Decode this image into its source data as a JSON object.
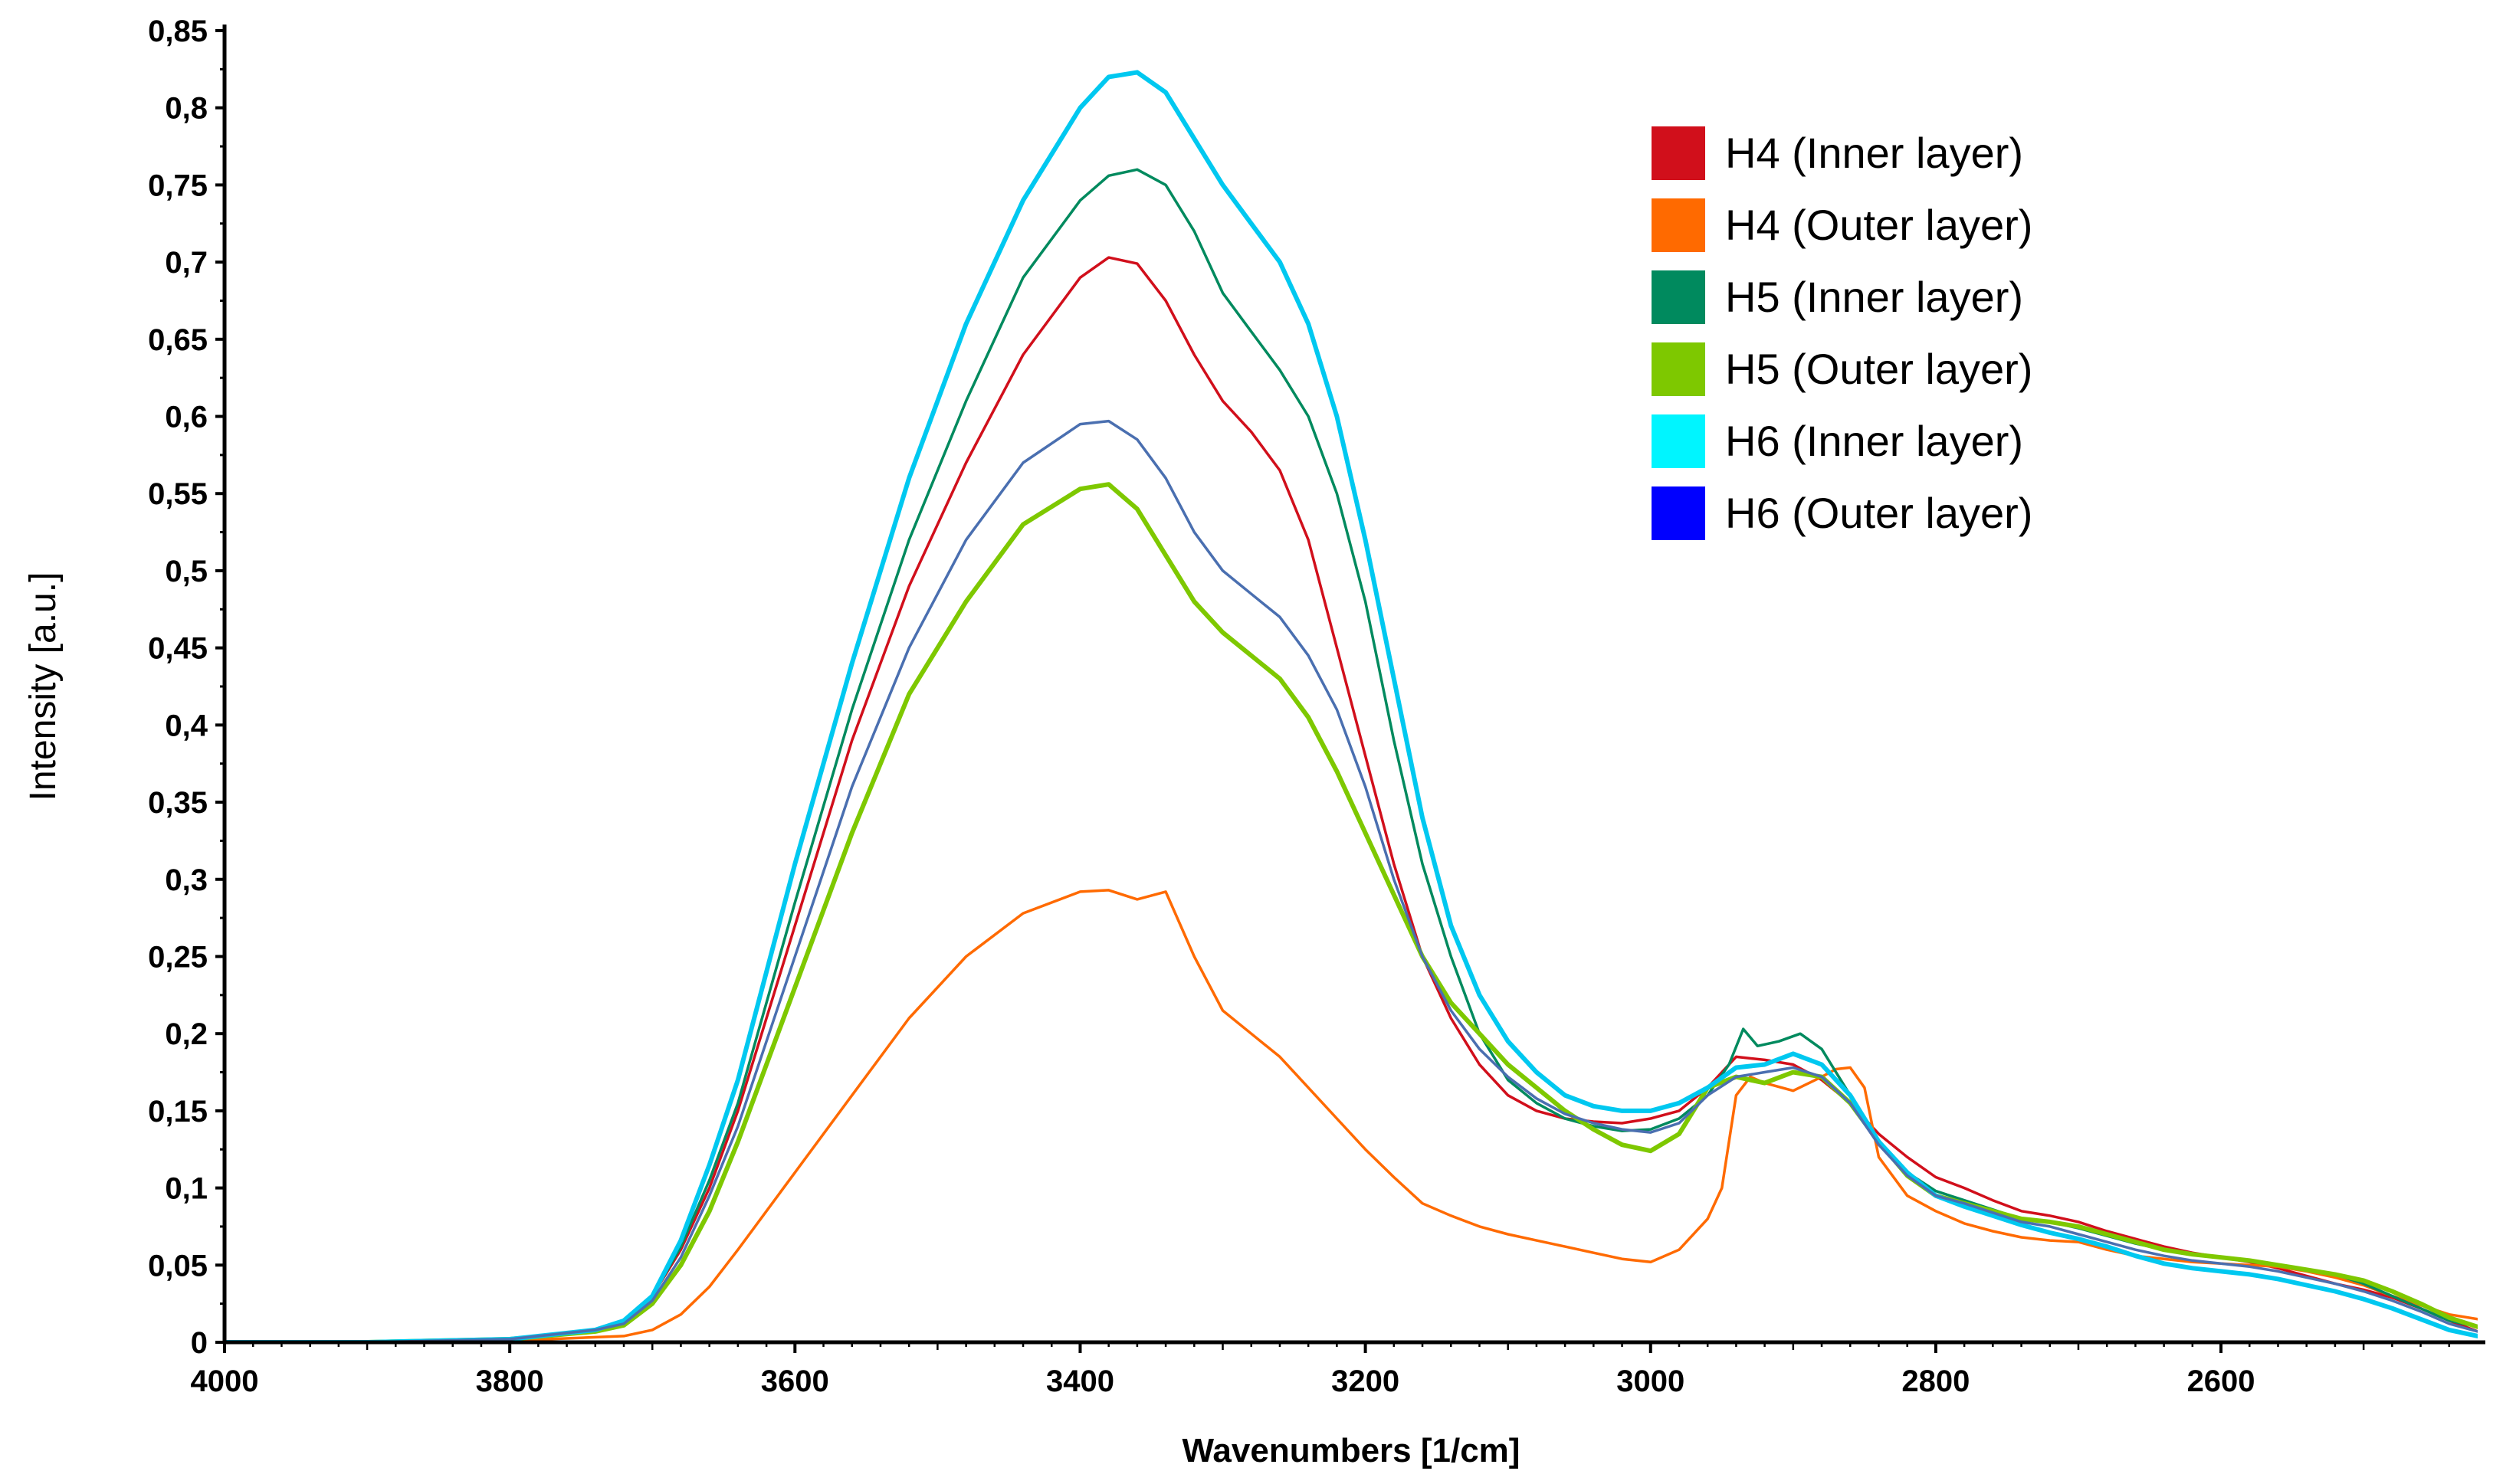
{
  "chart_data": {
    "type": "line",
    "title": "",
    "xlabel": "Wavenumbers [1/cm]",
    "ylabel": "Intensity [a.u.]",
    "xlim": [
      4000,
      2420
    ],
    "ylim": [
      0,
      0.85
    ],
    "x_ticks": [
      4000,
      3800,
      3600,
      3400,
      3200,
      3000,
      2800,
      2600
    ],
    "x_tick_labels": [
      "4000",
      "3800",
      "3600",
      "3400",
      "3200",
      "3000",
      "2800",
      "2600"
    ],
    "y_ticks": [
      0,
      0.05,
      0.1,
      0.15,
      0.2,
      0.25,
      0.3,
      0.35,
      0.4,
      0.45,
      0.5,
      0.55,
      0.6,
      0.65,
      0.7,
      0.75,
      0.8,
      0.85
    ],
    "y_tick_labels": [
      "0",
      "0,05",
      "0,1",
      "0,15",
      "0,2",
      "0,25",
      "0,3",
      "0,35",
      "0,4",
      "0,45",
      "0,5",
      "0,55",
      "0,6",
      "0,65",
      "0,7",
      "0,75",
      "0,8",
      "0,85"
    ],
    "legend_position": "top-right",
    "legend": [
      {
        "label": "H4 (Inner layer)",
        "color": "#d10f1b"
      },
      {
        "label": "H4 (Outer layer)",
        "color": "#ff6a00"
      },
      {
        "label": "H5 (Inner layer)",
        "color": "#008a5e"
      },
      {
        "label": "H5 (Outer layer)",
        "color": "#7ec800"
      },
      {
        "label": "H6 (Inner layer)",
        "color": "#00f5ff"
      },
      {
        "label": "H6 (Outer layer)",
        "color": "#0000ff"
      }
    ],
    "series": [
      {
        "name": "H4 (Inner layer)",
        "color": "#d10f1b",
        "width": 3.5,
        "x": [
          4000,
          3900,
          3800,
          3740,
          3720,
          3700,
          3680,
          3660,
          3640,
          3600,
          3560,
          3520,
          3480,
          3440,
          3400,
          3380,
          3360,
          3340,
          3320,
          3300,
          3280,
          3260,
          3240,
          3220,
          3200,
          3180,
          3160,
          3140,
          3120,
          3100,
          3080,
          3060,
          3040,
          3020,
          3000,
          2980,
          2960,
          2940,
          2920,
          2900,
          2880,
          2860,
          2840,
          2820,
          2800,
          2780,
          2760,
          2740,
          2720,
          2700,
          2680,
          2660,
          2640,
          2620,
          2600,
          2580,
          2560,
          2540,
          2520,
          2500,
          2480,
          2460,
          2440,
          2420
        ],
        "y": [
          0,
          0,
          0.002,
          0.008,
          0.013,
          0.03,
          0.06,
          0.1,
          0.15,
          0.27,
          0.39,
          0.49,
          0.57,
          0.64,
          0.69,
          0.703,
          0.699,
          0.675,
          0.64,
          0.61,
          0.59,
          0.565,
          0.52,
          0.45,
          0.38,
          0.31,
          0.25,
          0.21,
          0.18,
          0.16,
          0.15,
          0.145,
          0.143,
          0.142,
          0.145,
          0.15,
          0.165,
          0.185,
          0.183,
          0.18,
          0.17,
          0.155,
          0.135,
          0.12,
          0.107,
          0.1,
          0.092,
          0.085,
          0.082,
          0.078,
          0.072,
          0.067,
          0.062,
          0.058,
          0.055,
          0.052,
          0.048,
          0.043,
          0.038,
          0.034,
          0.029,
          0.022,
          0.014,
          0.007
        ]
      },
      {
        "name": "H4 (Outer layer)",
        "color": "#ff6a00",
        "width": 3.5,
        "x": [
          4000,
          3900,
          3800,
          3720,
          3700,
          3680,
          3660,
          3640,
          3600,
          3560,
          3520,
          3480,
          3440,
          3400,
          3380,
          3360,
          3340,
          3320,
          3300,
          3280,
          3260,
          3240,
          3220,
          3200,
          3180,
          3160,
          3140,
          3120,
          3100,
          3080,
          3060,
          3040,
          3020,
          3000,
          2980,
          2960,
          2950,
          2940,
          2930,
          2920,
          2900,
          2880,
          2870,
          2860,
          2850,
          2840,
          2820,
          2800,
          2780,
          2760,
          2740,
          2720,
          2700,
          2680,
          2660,
          2640,
          2620,
          2600,
          2580,
          2560,
          2540,
          2520,
          2500,
          2480,
          2460,
          2440,
          2420
        ],
        "y": [
          0,
          0,
          0.001,
          0.004,
          0.008,
          0.018,
          0.036,
          0.06,
          0.11,
          0.16,
          0.21,
          0.25,
          0.278,
          0.292,
          0.293,
          0.287,
          0.292,
          0.25,
          0.215,
          0.2,
          0.185,
          0.165,
          0.145,
          0.125,
          0.107,
          0.09,
          0.082,
          0.075,
          0.07,
          0.066,
          0.062,
          0.058,
          0.054,
          0.052,
          0.06,
          0.08,
          0.1,
          0.16,
          0.172,
          0.168,
          0.163,
          0.172,
          0.177,
          0.178,
          0.165,
          0.12,
          0.095,
          0.085,
          0.077,
          0.072,
          0.068,
          0.066,
          0.065,
          0.06,
          0.056,
          0.054,
          0.052,
          0.051,
          0.05,
          0.049,
          0.046,
          0.042,
          0.037,
          0.03,
          0.024,
          0.018,
          0.015
        ]
      },
      {
        "name": "H5 (Inner layer)",
        "color": "#008a5e",
        "width": 3.5,
        "x": [
          4000,
          3900,
          3800,
          3740,
          3720,
          3700,
          3680,
          3660,
          3640,
          3600,
          3560,
          3520,
          3480,
          3440,
          3400,
          3380,
          3360,
          3340,
          3320,
          3300,
          3280,
          3260,
          3240,
          3220,
          3200,
          3180,
          3160,
          3140,
          3120,
          3100,
          3080,
          3060,
          3040,
          3020,
          3000,
          2980,
          2960,
          2945,
          2935,
          2925,
          2910,
          2895,
          2880,
          2860,
          2840,
          2820,
          2800,
          2780,
          2760,
          2740,
          2720,
          2700,
          2680,
          2660,
          2640,
          2620,
          2600,
          2580,
          2560,
          2540,
          2520,
          2500,
          2480,
          2460,
          2440,
          2420
        ],
        "y": [
          0,
          0,
          0.002,
          0.008,
          0.014,
          0.03,
          0.062,
          0.105,
          0.155,
          0.285,
          0.41,
          0.52,
          0.61,
          0.69,
          0.74,
          0.756,
          0.76,
          0.75,
          0.72,
          0.68,
          0.655,
          0.63,
          0.6,
          0.55,
          0.48,
          0.39,
          0.31,
          0.25,
          0.2,
          0.17,
          0.155,
          0.145,
          0.14,
          0.137,
          0.138,
          0.145,
          0.16,
          0.18,
          0.203,
          0.192,
          0.195,
          0.2,
          0.19,
          0.16,
          0.13,
          0.11,
          0.098,
          0.092,
          0.086,
          0.08,
          0.078,
          0.074,
          0.069,
          0.064,
          0.06,
          0.057,
          0.055,
          0.053,
          0.05,
          0.047,
          0.044,
          0.038,
          0.03,
          0.022,
          0.014,
          0.01
        ]
      },
      {
        "name": "H5 (Outer layer)",
        "color": "#7ec800",
        "width": 6,
        "x": [
          4000,
          3900,
          3800,
          3740,
          3720,
          3700,
          3680,
          3660,
          3640,
          3600,
          3560,
          3520,
          3480,
          3440,
          3400,
          3380,
          3360,
          3340,
          3320,
          3300,
          3280,
          3260,
          3240,
          3220,
          3200,
          3180,
          3160,
          3140,
          3120,
          3100,
          3080,
          3060,
          3040,
          3020,
          3000,
          2980,
          2960,
          2940,
          2920,
          2900,
          2880,
          2860,
          2840,
          2820,
          2800,
          2780,
          2760,
          2740,
          2720,
          2700,
          2680,
          2660,
          2640,
          2620,
          2600,
          2580,
          2560,
          2540,
          2520,
          2500,
          2480,
          2460,
          2440,
          2420
        ],
        "y": [
          0,
          0,
          0.002,
          0.007,
          0.011,
          0.025,
          0.05,
          0.085,
          0.13,
          0.23,
          0.33,
          0.42,
          0.48,
          0.53,
          0.553,
          0.556,
          0.54,
          0.51,
          0.48,
          0.46,
          0.445,
          0.43,
          0.405,
          0.37,
          0.33,
          0.29,
          0.25,
          0.22,
          0.2,
          0.18,
          0.165,
          0.15,
          0.138,
          0.128,
          0.124,
          0.135,
          0.165,
          0.172,
          0.168,
          0.175,
          0.172,
          0.155,
          0.13,
          0.108,
          0.095,
          0.09,
          0.085,
          0.08,
          0.078,
          0.075,
          0.07,
          0.065,
          0.06,
          0.057,
          0.055,
          0.053,
          0.05,
          0.047,
          0.044,
          0.04,
          0.033,
          0.025,
          0.016,
          0.01
        ]
      },
      {
        "name": "H6 (Inner layer)",
        "color": "#00c8f0",
        "width": 6,
        "x": [
          4000,
          3900,
          3800,
          3740,
          3720,
          3700,
          3680,
          3660,
          3640,
          3600,
          3560,
          3520,
          3480,
          3440,
          3400,
          3380,
          3360,
          3340,
          3320,
          3300,
          3280,
          3260,
          3240,
          3220,
          3200,
          3180,
          3160,
          3140,
          3120,
          3100,
          3080,
          3060,
          3040,
          3020,
          3000,
          2980,
          2960,
          2940,
          2920,
          2900,
          2880,
          2860,
          2840,
          2820,
          2800,
          2780,
          2760,
          2740,
          2720,
          2700,
          2680,
          2660,
          2640,
          2620,
          2600,
          2580,
          2560,
          2540,
          2520,
          2500,
          2480,
          2460,
          2440,
          2420
        ],
        "y": [
          0,
          0,
          0.002,
          0.008,
          0.014,
          0.03,
          0.066,
          0.115,
          0.17,
          0.31,
          0.44,
          0.56,
          0.66,
          0.74,
          0.8,
          0.82,
          0.823,
          0.81,
          0.78,
          0.75,
          0.725,
          0.7,
          0.66,
          0.6,
          0.52,
          0.43,
          0.34,
          0.27,
          0.225,
          0.195,
          0.175,
          0.16,
          0.153,
          0.15,
          0.15,
          0.155,
          0.165,
          0.178,
          0.18,
          0.187,
          0.18,
          0.16,
          0.13,
          0.11,
          0.095,
          0.088,
          0.082,
          0.076,
          0.071,
          0.067,
          0.062,
          0.056,
          0.051,
          0.048,
          0.046,
          0.044,
          0.041,
          0.037,
          0.033,
          0.028,
          0.022,
          0.015,
          0.008,
          0.004
        ]
      },
      {
        "name": "H6 (Outer layer)",
        "color": "#4a6fb0",
        "width": 3.5,
        "x": [
          4000,
          3900,
          3800,
          3740,
          3720,
          3700,
          3680,
          3660,
          3640,
          3600,
          3560,
          3520,
          3480,
          3440,
          3400,
          3380,
          3360,
          3340,
          3320,
          3300,
          3280,
          3260,
          3240,
          3220,
          3200,
          3180,
          3160,
          3140,
          3120,
          3100,
          3080,
          3060,
          3040,
          3020,
          3000,
          2980,
          2960,
          2940,
          2920,
          2900,
          2880,
          2860,
          2840,
          2820,
          2800,
          2780,
          2760,
          2740,
          2720,
          2700,
          2680,
          2660,
          2640,
          2620,
          2600,
          2580,
          2560,
          2540,
          2520,
          2500,
          2480,
          2460,
          2440,
          2420
        ],
        "y": [
          0,
          0,
          0.002,
          0.008,
          0.012,
          0.027,
          0.055,
          0.095,
          0.14,
          0.25,
          0.36,
          0.45,
          0.52,
          0.57,
          0.595,
          0.597,
          0.585,
          0.56,
          0.525,
          0.5,
          0.485,
          0.47,
          0.445,
          0.41,
          0.36,
          0.3,
          0.25,
          0.215,
          0.19,
          0.172,
          0.158,
          0.148,
          0.142,
          0.138,
          0.136,
          0.142,
          0.16,
          0.172,
          0.175,
          0.178,
          0.172,
          0.155,
          0.128,
          0.108,
          0.095,
          0.09,
          0.084,
          0.078,
          0.075,
          0.07,
          0.065,
          0.06,
          0.056,
          0.053,
          0.051,
          0.049,
          0.046,
          0.042,
          0.038,
          0.033,
          0.027,
          0.02,
          0.012,
          0.007
        ]
      }
    ]
  }
}
